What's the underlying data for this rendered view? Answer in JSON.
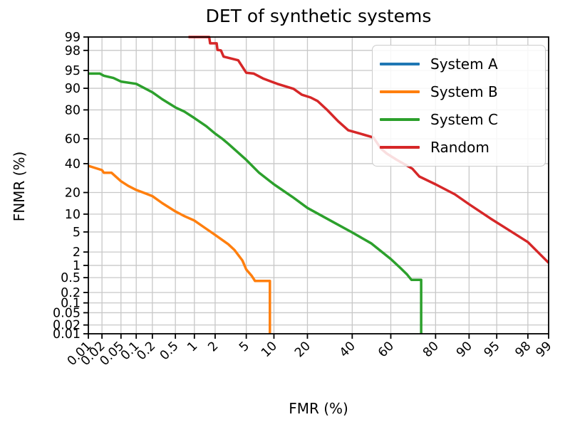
{
  "chart_data": {
    "type": "line",
    "title": "DET of synthetic systems",
    "xlabel": "FMR (%)",
    "ylabel": "FNMR (%)",
    "scale": "probit-probit DET axes, values in percent",
    "xlim": [
      0.01,
      99
    ],
    "ylim": [
      0.01,
      99
    ],
    "grid": true,
    "legend_position": "upper right",
    "grid_color": "#c8c8c8",
    "axis_color": "#000000",
    "x_tick_labels": [
      "0.01",
      "0.02",
      "0.05",
      "0.1",
      "0.2",
      "0.5",
      "1",
      "2",
      "5",
      "10",
      "20",
      "40",
      "60",
      "80",
      "90",
      "95",
      "98",
      "99"
    ],
    "y_tick_labels": [
      "0.01",
      "0.02",
      "0.05",
      "0.1",
      "0.2",
      "0.5",
      "1",
      "2",
      "5",
      "10",
      "20",
      "40",
      "60",
      "80",
      "90",
      "95",
      "98",
      "99"
    ],
    "x_ticks": [
      0.01,
      0.02,
      0.05,
      0.1,
      0.2,
      0.5,
      1,
      2,
      5,
      10,
      20,
      40,
      60,
      80,
      90,
      95,
      98,
      99
    ],
    "y_ticks": [
      0.01,
      0.02,
      0.05,
      0.1,
      0.2,
      0.5,
      1,
      2,
      5,
      10,
      20,
      40,
      60,
      80,
      90,
      95,
      98,
      99
    ],
    "series": [
      {
        "name": "System A",
        "color": "#1f77b4",
        "points": []
      },
      {
        "name": "System B",
        "color": "#ff7f0e",
        "points": [
          [
            0.01,
            38.3
          ],
          [
            0.02,
            35.0
          ],
          [
            0.022,
            33.0
          ],
          [
            0.032,
            33.0
          ],
          [
            0.05,
            27.0
          ],
          [
            0.07,
            24.0
          ],
          [
            0.1,
            21.5
          ],
          [
            0.15,
            19.5
          ],
          [
            0.2,
            18.0
          ],
          [
            0.3,
            14.5
          ],
          [
            0.5,
            11.0
          ],
          [
            0.7,
            9.3
          ],
          [
            1.0,
            7.9
          ],
          [
            1.5,
            5.7
          ],
          [
            2.0,
            4.4
          ],
          [
            3.0,
            2.9
          ],
          [
            3.6,
            2.2
          ],
          [
            4.5,
            1.3
          ],
          [
            5.0,
            0.8
          ],
          [
            5.8,
            0.55
          ],
          [
            6.3,
            0.41
          ],
          [
            9.1,
            0.41
          ],
          [
            9.1,
            0.005
          ]
        ]
      },
      {
        "name": "System C",
        "color": "#2ca02c",
        "points": [
          [
            0.01,
            94.3
          ],
          [
            0.018,
            94.3
          ],
          [
            0.022,
            93.8
          ],
          [
            0.035,
            93.2
          ],
          [
            0.05,
            92.2
          ],
          [
            0.1,
            91.5
          ],
          [
            0.2,
            88.5
          ],
          [
            0.3,
            85.5
          ],
          [
            0.5,
            81.4
          ],
          [
            0.7,
            79.0
          ],
          [
            1.0,
            75.0
          ],
          [
            1.5,
            69.5
          ],
          [
            2.0,
            64.0
          ],
          [
            2.5,
            60.0
          ],
          [
            3.0,
            56.0
          ],
          [
            5.0,
            43.0
          ],
          [
            7.0,
            33.0
          ],
          [
            10.0,
            25.0
          ],
          [
            15.0,
            17.5
          ],
          [
            20.0,
            12.4
          ],
          [
            30.0,
            7.7
          ],
          [
            40.0,
            4.9
          ],
          [
            50.0,
            3.0
          ],
          [
            60.0,
            1.4
          ],
          [
            65.0,
            0.85
          ],
          [
            68.0,
            0.6
          ],
          [
            70.0,
            0.44
          ],
          [
            74.3,
            0.44
          ],
          [
            74.3,
            0.005
          ]
        ]
      },
      {
        "name": "Random",
        "color": "#d62728",
        "points": [
          [
            0.81,
            99.0
          ],
          [
            1.65,
            99.0
          ],
          [
            1.7,
            98.6
          ],
          [
            2.1,
            98.6
          ],
          [
            2.15,
            98.05
          ],
          [
            2.4,
            98.0
          ],
          [
            2.6,
            97.3
          ],
          [
            4.0,
            96.8
          ],
          [
            5.0,
            94.5
          ],
          [
            6.1,
            94.3
          ],
          [
            7.7,
            93.1
          ],
          [
            10.8,
            91.5
          ],
          [
            15.3,
            89.8
          ],
          [
            18.0,
            87.5
          ],
          [
            21.2,
            86.3
          ],
          [
            24.0,
            84.6
          ],
          [
            28.0,
            80.0
          ],
          [
            33.0,
            73.0
          ],
          [
            38.0,
            66.5
          ],
          [
            44.0,
            64.0
          ],
          [
            51.0,
            61.0
          ],
          [
            55.0,
            52.0
          ],
          [
            58.0,
            48.0
          ],
          [
            63.0,
            43.0
          ],
          [
            70.4,
            36.1
          ],
          [
            73.5,
            30.3
          ],
          [
            80.0,
            25.0
          ],
          [
            86.3,
            19.0
          ],
          [
            90.0,
            14.0
          ],
          [
            94.1,
            8.5
          ],
          [
            96.0,
            6.0
          ],
          [
            98.0,
            3.2
          ],
          [
            99.0,
            1.15
          ]
        ]
      }
    ]
  }
}
